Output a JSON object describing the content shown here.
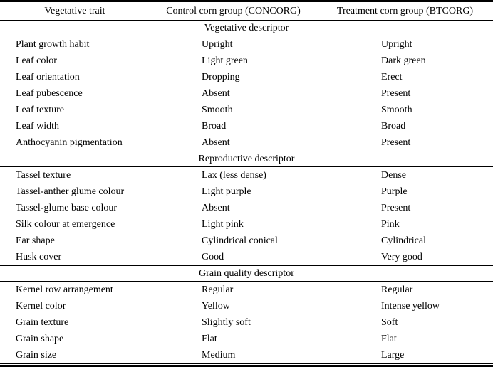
{
  "table": {
    "columns": [
      "Vegetative trait",
      "Control corn group (CONCORG)",
      "Treatment corn group (BTCORG)"
    ],
    "sections": [
      {
        "title": "Vegetative descriptor",
        "rows": [
          [
            "Plant growth habit",
            "Upright",
            "Upright"
          ],
          [
            "Leaf color",
            "Light green",
            "Dark green"
          ],
          [
            "Leaf orientation",
            "Dropping",
            "Erect"
          ],
          [
            "Leaf pubescence",
            "Absent",
            "Present"
          ],
          [
            "Leaf texture",
            "Smooth",
            "Smooth"
          ],
          [
            "Leaf width",
            "Broad",
            "Broad"
          ],
          [
            "Anthocyanin pigmentation",
            "Absent",
            "Present"
          ]
        ]
      },
      {
        "title": "Reproductive descriptor",
        "rows": [
          [
            "Tassel texture",
            "Lax (less dense)",
            "Dense"
          ],
          [
            "Tassel-anther glume colour",
            "Light purple",
            "Purple"
          ],
          [
            "Tassel-glume base colour",
            "Absent",
            "Present"
          ],
          [
            "Silk colour at emergence",
            "Light pink",
            "Pink"
          ],
          [
            "Ear shape",
            "Cylindrical conical",
            "Cylindrical"
          ],
          [
            "Husk cover",
            "Good",
            "Very good"
          ]
        ]
      },
      {
        "title": "Grain quality descriptor",
        "rows": [
          [
            "Kernel row arrangement",
            "Regular",
            "Regular"
          ],
          [
            "Kernel color",
            "Yellow",
            "Intense yellow"
          ],
          [
            "Grain texture",
            "Slightly soft",
            "Soft"
          ],
          [
            "Grain shape",
            "Flat",
            "Flat"
          ],
          [
            "Grain size",
            "Medium",
            "Large"
          ]
        ]
      }
    ],
    "colors": {
      "text": "#000000",
      "background": "#ffffff",
      "rule": "#000000"
    }
  }
}
